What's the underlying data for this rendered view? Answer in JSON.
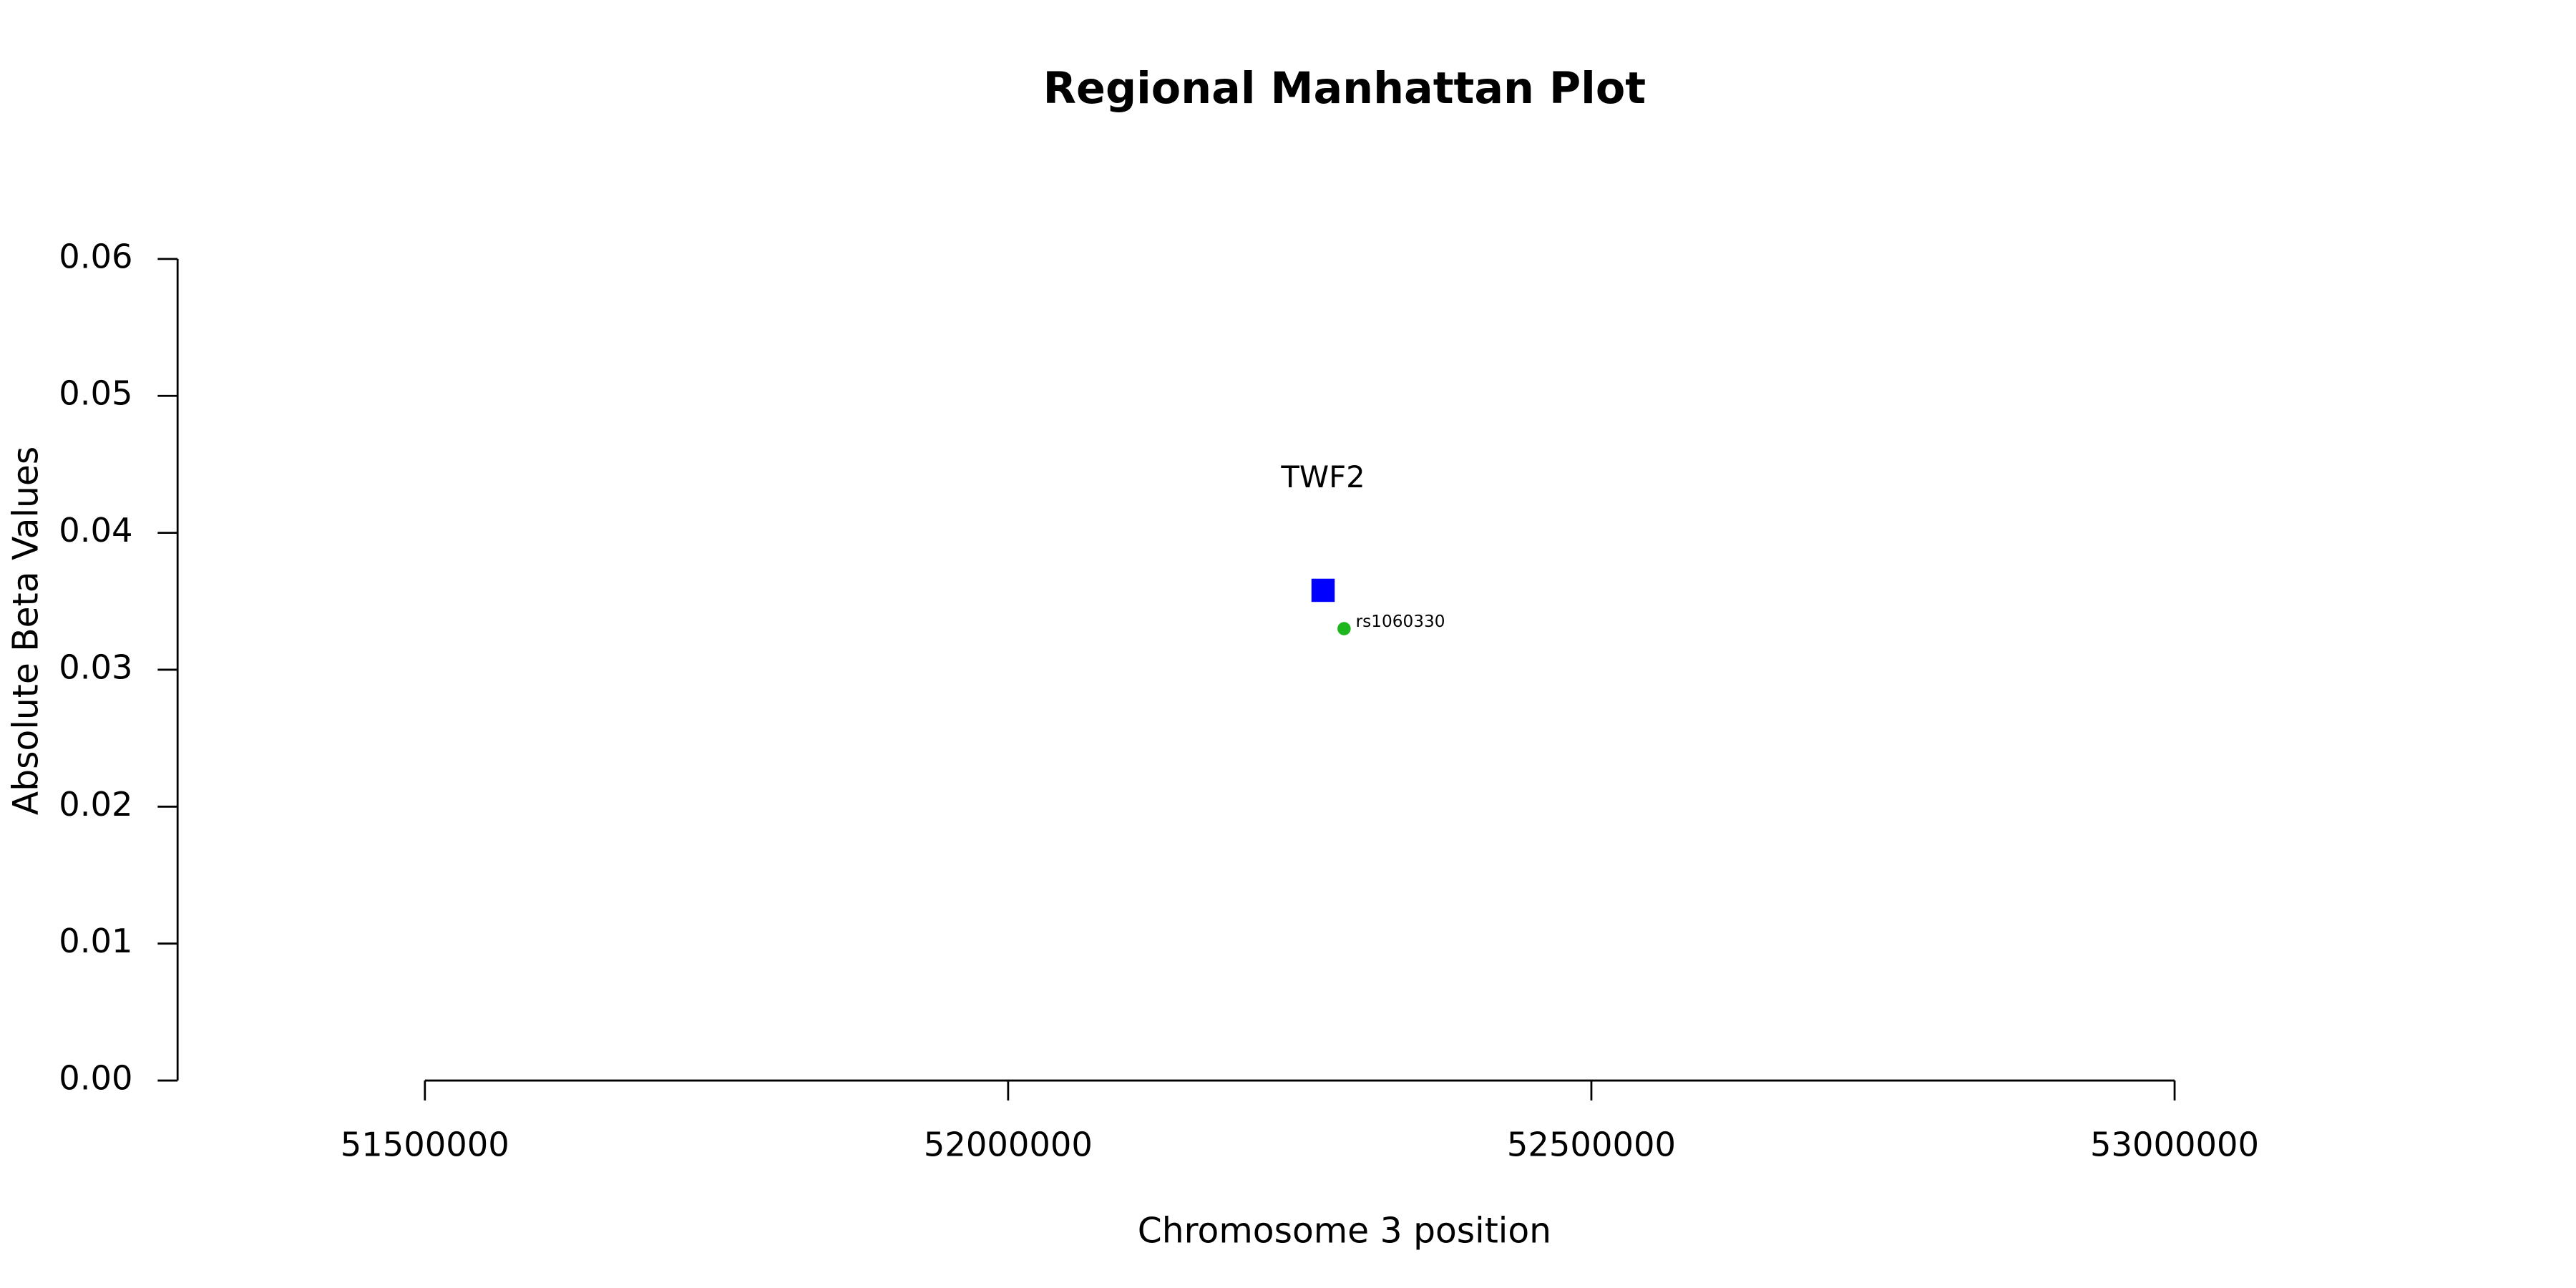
{
  "chart_data": {
    "type": "scatter",
    "title": "Regional Manhattan Plot",
    "x_label": "Chromosome 3 position",
    "y_label": "Absolute Beta Values",
    "xlim": [
      51288000,
      53300000
    ],
    "ylim": [
      0,
      0.06
    ],
    "xticks": [
      51500000,
      52000000,
      52500000,
      53000000
    ],
    "yticks": [
      {
        "value": 0,
        "label": "0.00"
      },
      0.01,
      0.02,
      0.03,
      0.04,
      0.05,
      0.06
    ],
    "genes": [
      {
        "label": "TWF2",
        "x": 52270000,
        "y": 0.0358,
        "color": "#0000ff"
      }
    ],
    "snps": [
      {
        "label": "rs1060330",
        "x": 52288000,
        "y": 0.033,
        "color": "#1fb51f"
      }
    ]
  }
}
